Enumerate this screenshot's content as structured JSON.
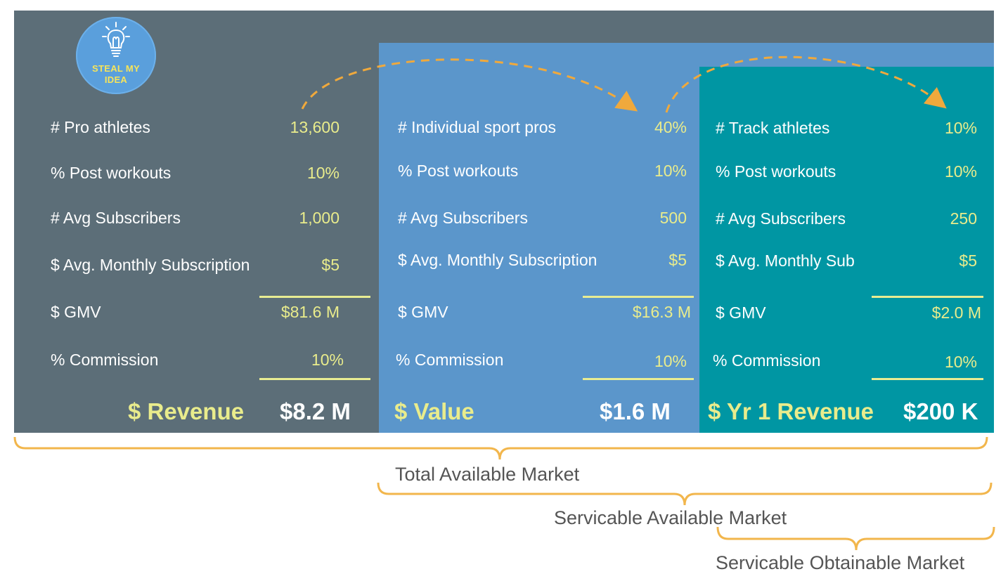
{
  "logo": {
    "text_line1": "STEAL MY",
    "text_line2": "IDEA",
    "icon": "lightbulb-icon"
  },
  "columns": [
    {
      "rows": [
        {
          "label": "# Pro athletes",
          "value": "13,600"
        },
        {
          "label": "% Post workouts",
          "value": "10%"
        },
        {
          "label": "# Avg Subscribers",
          "value": "1,000"
        },
        {
          "label": "$ Avg. Monthly Subscription",
          "value": "$5"
        },
        {
          "label": "$ GMV",
          "value": "$81.6 M"
        },
        {
          "label": "% Commission",
          "value": "10%"
        }
      ],
      "result_label": "$ Revenue",
      "result_value": "$8.2 M"
    },
    {
      "rows": [
        {
          "label": "# Individual sport pros",
          "value": "40%"
        },
        {
          "label": "% Post workouts",
          "value": "10%"
        },
        {
          "label": "# Avg Subscribers",
          "value": "500"
        },
        {
          "label": "$ Avg. Monthly Subscription",
          "value": "$5"
        },
        {
          "label": "$ GMV",
          "value": "$16.3 M"
        },
        {
          "label": "% Commission",
          "value": "10%"
        }
      ],
      "result_label": "$ Value",
      "result_value": "$1.6 M"
    },
    {
      "rows": [
        {
          "label": "# Track athletes",
          "value": "10%"
        },
        {
          "label": "% Post workouts",
          "value": "10%"
        },
        {
          "label": "# Avg Subscribers",
          "value": "250"
        },
        {
          "label": "$ Avg. Monthly Sub",
          "value": "$5"
        },
        {
          "label": "$ GMV",
          "value": "$2.0 M"
        },
        {
          "label": "% Commission",
          "value": "10%"
        }
      ],
      "result_label": "$ Yr 1 Revenue",
      "result_value": "$200 K"
    }
  ],
  "markets": {
    "tam": "Total Available Market",
    "sam": "Servicable Available Market",
    "som": "Servicable Obtainable Market"
  },
  "colors": {
    "tam_bg": "#5c6e78",
    "sam_bg": "#5b96cb",
    "som_bg": "#0096a3",
    "value_text": "#e9ec8c",
    "bracket": "#f2b64c",
    "arrow": "#f0a93c"
  }
}
